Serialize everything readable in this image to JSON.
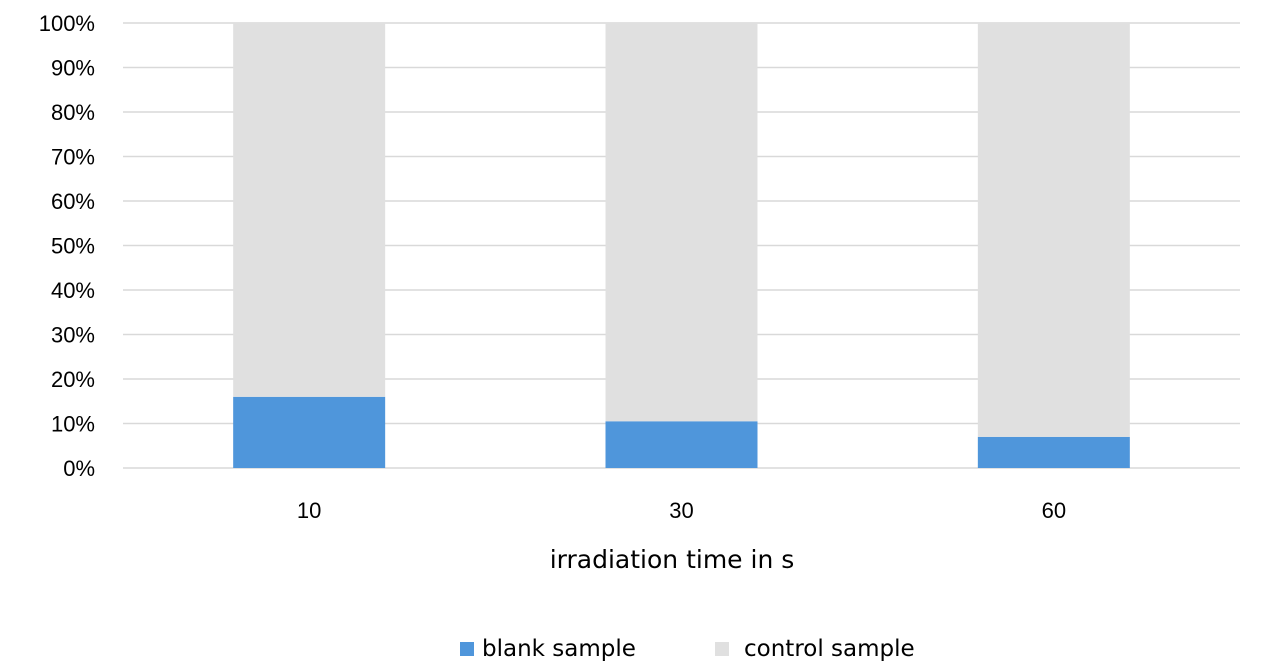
{
  "chart_data": {
    "type": "bar",
    "stacked": true,
    "normalized_percent": true,
    "categories": [
      "10",
      "30",
      "60"
    ],
    "series": [
      {
        "name": "blank sample",
        "values": [
          16,
          10.5,
          7
        ],
        "color": "#4f96db"
      },
      {
        "name": "control sample",
        "values": [
          84,
          89.5,
          93
        ],
        "color": "#e0e0e0"
      }
    ],
    "xlabel": "irradiation time in s",
    "ylabel": "",
    "ylim": [
      0,
      100
    ],
    "yticks": [
      "0%",
      "10%",
      "20%",
      "30%",
      "40%",
      "50%",
      "60%",
      "70%",
      "80%",
      "90%",
      "100%"
    ],
    "grid": true,
    "gridline_color": "#d9d9d9",
    "legend_position": "bottom"
  }
}
